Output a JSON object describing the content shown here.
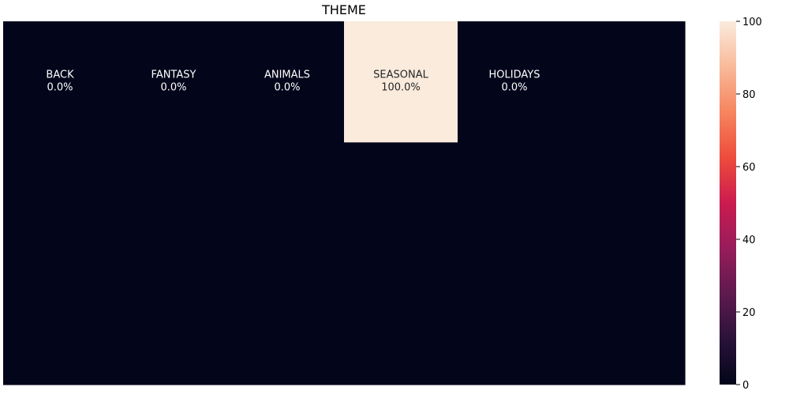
{
  "chart_data": {
    "type": "heatmap",
    "title": "THEME",
    "xlabel": "",
    "ylabel": "",
    "grid": false,
    "rows": 3,
    "cols": 6,
    "cells": [
      {
        "row": 0,
        "col": 0,
        "label": "BACK",
        "value": 0.0,
        "value_text": "0.0%"
      },
      {
        "row": 0,
        "col": 1,
        "label": "FANTASY",
        "value": 0.0,
        "value_text": "0.0%"
      },
      {
        "row": 0,
        "col": 2,
        "label": "ANIMALS",
        "value": 0.0,
        "value_text": "0.0%"
      },
      {
        "row": 0,
        "col": 3,
        "label": "SEASONAL",
        "value": 100.0,
        "value_text": "100.0%"
      },
      {
        "row": 0,
        "col": 4,
        "label": "HOLIDAYS",
        "value": 0.0,
        "value_text": "0.0%"
      },
      {
        "row": 0,
        "col": 5,
        "label": "",
        "value": 0.0,
        "value_text": ""
      },
      {
        "row": 1,
        "col": 0,
        "label": "",
        "value": 0.0,
        "value_text": ""
      },
      {
        "row": 1,
        "col": 1,
        "label": "",
        "value": 0.0,
        "value_text": ""
      },
      {
        "row": 1,
        "col": 2,
        "label": "",
        "value": 0.0,
        "value_text": ""
      },
      {
        "row": 1,
        "col": 3,
        "label": "",
        "value": 0.0,
        "value_text": ""
      },
      {
        "row": 1,
        "col": 4,
        "label": "",
        "value": 0.0,
        "value_text": ""
      },
      {
        "row": 1,
        "col": 5,
        "label": "",
        "value": 0.0,
        "value_text": ""
      },
      {
        "row": 2,
        "col": 0,
        "label": "",
        "value": 0.0,
        "value_text": ""
      },
      {
        "row": 2,
        "col": 1,
        "label": "",
        "value": 0.0,
        "value_text": ""
      },
      {
        "row": 2,
        "col": 2,
        "label": "",
        "value": 0.0,
        "value_text": ""
      },
      {
        "row": 2,
        "col": 3,
        "label": "",
        "value": 0.0,
        "value_text": ""
      },
      {
        "row": 2,
        "col": 4,
        "label": "",
        "value": 0.0,
        "value_text": ""
      },
      {
        "row": 2,
        "col": 5,
        "label": "",
        "value": 0.0,
        "value_text": ""
      }
    ],
    "colorbar": {
      "range": [
        0,
        100
      ],
      "ticks": [
        0,
        20,
        40,
        60,
        80,
        100
      ],
      "tick_labels": [
        "0",
        "20",
        "40",
        "60",
        "80",
        "100"
      ],
      "colormap": "rocket",
      "stops": [
        "#03051a",
        "#2a1239",
        "#5e1a4e",
        "#971c5b",
        "#cb1b4f",
        "#ee4c3c",
        "#f6855f",
        "#f9ba9a",
        "#faebdd"
      ]
    },
    "colors": {
      "low": "#03051a",
      "high": "#faebdd",
      "text_on_dark": "#ffffff",
      "text_on_light": "#262626"
    }
  }
}
